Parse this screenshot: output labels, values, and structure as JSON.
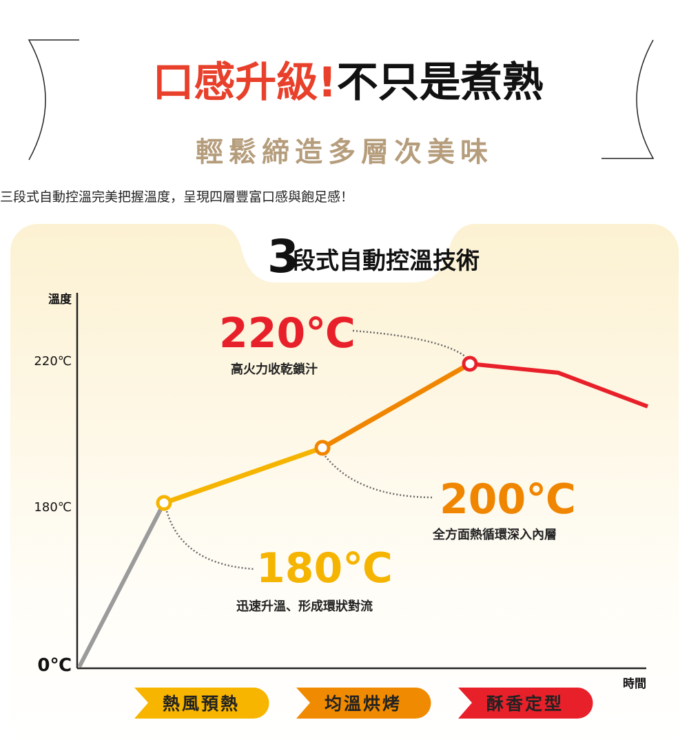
{
  "header": {
    "title_red": "口感升級!",
    "title_black": "不只是煮熟",
    "subtitle": "輕鬆締造多層次美味"
  },
  "intro": "三段式自動控溫完美把握溫度，呈現四層豐富口感與飽足感！",
  "panel": {
    "title_number": "3",
    "title_text": "段式自動控溫技術",
    "y_axis_label": "溫度",
    "x_axis_label": "時間",
    "y_ticks": [
      "220℃",
      "180℃",
      "0℃"
    ],
    "callouts": [
      {
        "temp": "220℃",
        "desc": "高火力收乾鎖汁"
      },
      {
        "temp": "200℃",
        "desc": "全方面熱循環深入內層"
      },
      {
        "temp": "180℃",
        "desc": "迅速升溫、形成環狀對流"
      }
    ],
    "stages": [
      "熱風預熱",
      "均溫烘烤",
      "酥香定型"
    ]
  }
}
